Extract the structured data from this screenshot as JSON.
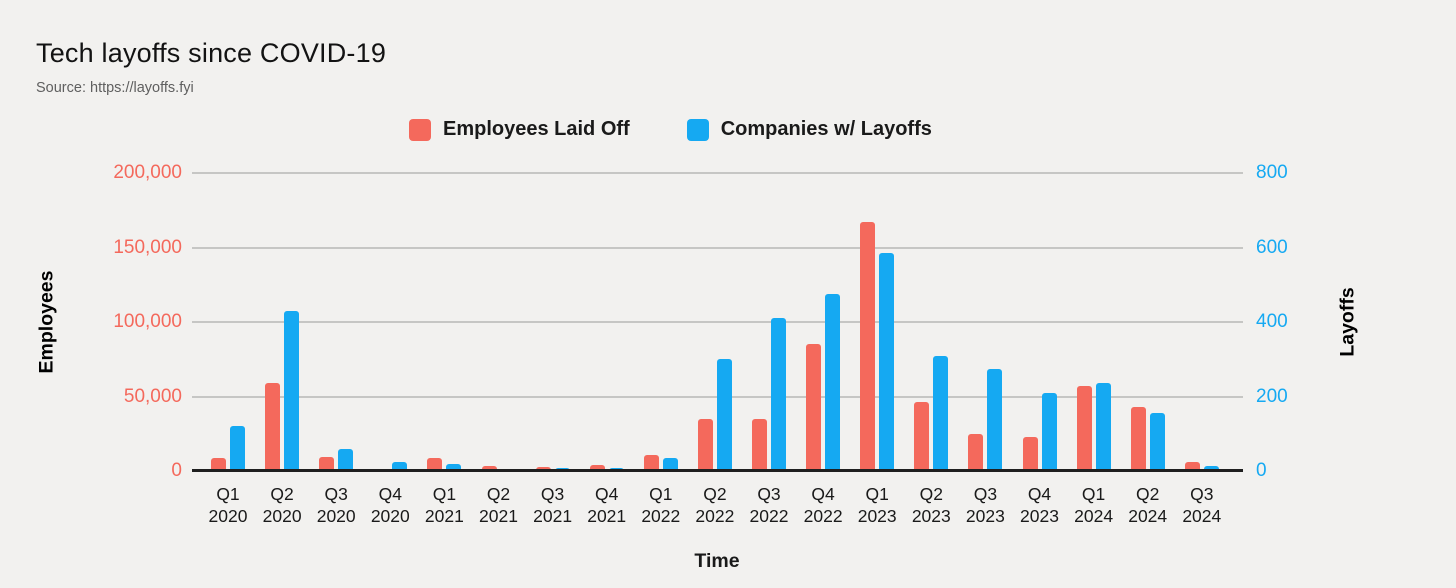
{
  "header": {
    "title": "Tech layoffs since COVID-19",
    "source": "Source: https://layoffs.fyi"
  },
  "colors": {
    "employees": "#F4695C",
    "companies": "#15A9F2",
    "background": "#F2F1EF",
    "gridline": "#C6C6C4",
    "baseline": "#1F1F1F"
  },
  "chart_data": {
    "type": "bar",
    "title": "Tech layoffs since COVID-19",
    "xlabel": "Time",
    "grid": true,
    "legend_position": "top",
    "categories": [
      "Q1 2020",
      "Q2 2020",
      "Q3 2020",
      "Q4 2020",
      "Q1 2021",
      "Q2 2021",
      "Q3 2021",
      "Q4 2021",
      "Q1 2022",
      "Q2 2022",
      "Q3 2022",
      "Q4 2022",
      "Q1 2023",
      "Q2 2023",
      "Q3 2023",
      "Q4 2023",
      "Q1 2024",
      "Q2 2024",
      "Q3 2024"
    ],
    "series": [
      {
        "name": "Employees Laid Off",
        "axis": "left",
        "color": "#F4695C",
        "values": [
          9000,
          59000,
          9500,
          1500,
          8500,
          3400,
          2500,
          4000,
          10500,
          35000,
          35000,
          85000,
          167000,
          46000,
          25000,
          23000,
          57000,
          43000,
          6000
        ]
      },
      {
        "name": "Companies w/ Layoffs",
        "axis": "right",
        "color": "#15A9F2",
        "values": [
          120,
          430,
          60,
          25,
          20,
          5,
          8,
          8,
          35,
          300,
          410,
          475,
          585,
          310,
          275,
          210,
          235,
          155,
          13
        ]
      }
    ],
    "left_axis": {
      "label": "Employees",
      "min": 0,
      "max": 200000,
      "ticks": [
        "0",
        "50,000",
        "100,000",
        "150,000",
        "200,000"
      ]
    },
    "right_axis": {
      "label": "Layoffs",
      "min": 0,
      "max": 800,
      "ticks": [
        "0",
        "200",
        "400",
        "600",
        "800"
      ]
    }
  }
}
